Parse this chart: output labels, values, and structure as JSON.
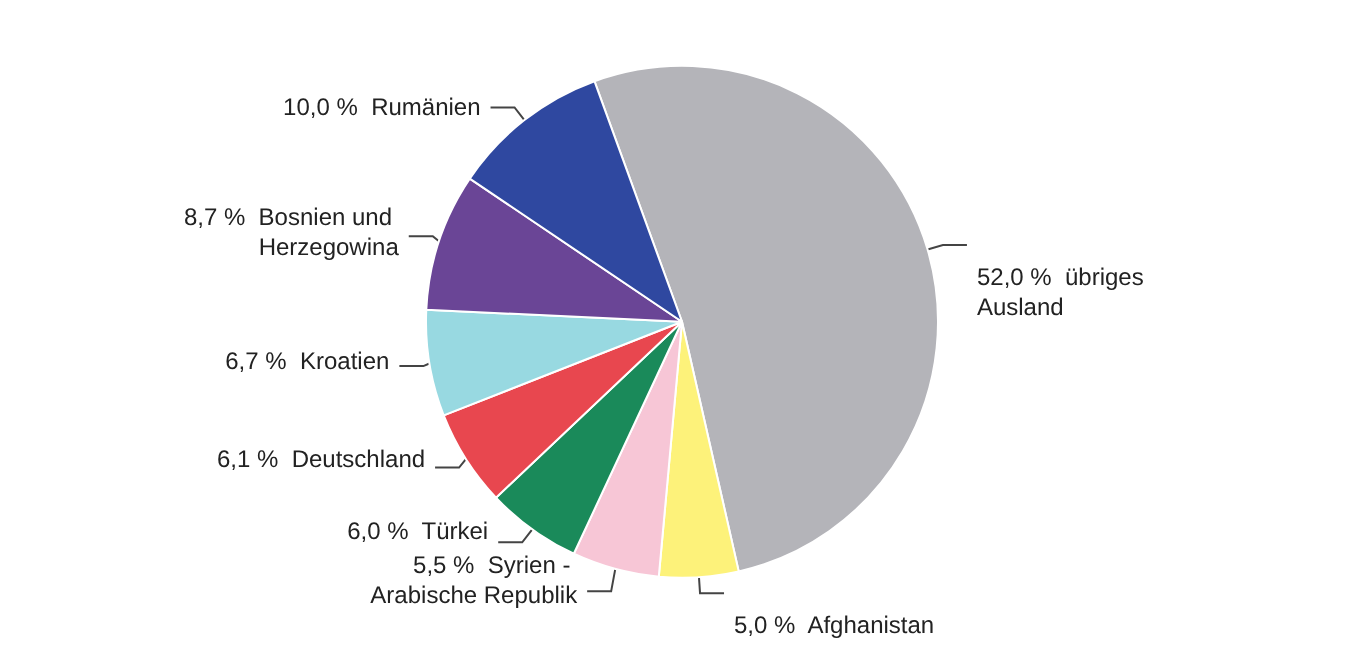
{
  "chart_data": {
    "type": "pie",
    "categories": [
      "übriges Ausland",
      "Afghanistan",
      "Syrien - Arabische Republik",
      "Türkei",
      "Deutschland",
      "Kroatien",
      "Bosnien und Herzegowina",
      "Rumänien"
    ],
    "values": [
      52.0,
      5.0,
      5.5,
      6.0,
      6.1,
      6.7,
      8.7,
      10.0
    ],
    "value_labels": [
      "52,0 %",
      "5,0 %",
      "5,5 %",
      "6,0 %",
      "6,1 %",
      "6,7 %",
      "8,7 %",
      "10,0 %"
    ],
    "colors": [
      "#b4b4b9",
      "#fdf27a",
      "#f7c6d6",
      "#1a8a5a",
      "#e8474f",
      "#98d9e1",
      "#6a4596",
      "#2f48a0"
    ]
  }
}
